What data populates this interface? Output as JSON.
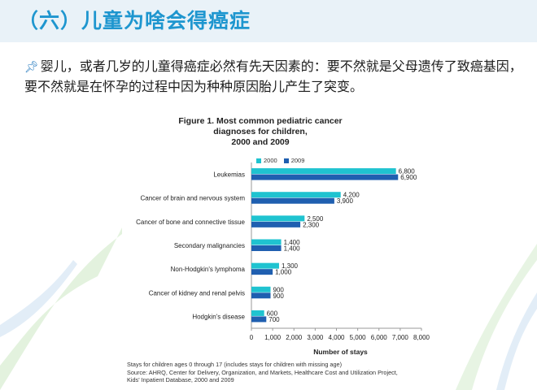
{
  "slide": {
    "title": "（六）儿童为啥会得癌症",
    "body_text": "婴儿，或者几岁的儿童得癌症必然有先天因素的：要不然就是父母遗传了致癌基因，要不然就是在怀孕的过程中因为种种原因胎儿产生了突变。",
    "bullet_icon": "pin-icon"
  },
  "colors": {
    "series_2000": "#1fc3d0",
    "series_2009": "#1f5fb0",
    "title": "#1e96cf"
  },
  "chart_data": {
    "type": "bar",
    "orientation": "horizontal",
    "title_lines": [
      "Figure 1. Most common pediatric cancer",
      "diagnoses for children,",
      "2000 and 2009"
    ],
    "categories": [
      "Leukemias",
      "Cancer of brain and nervous system",
      "Cancer of bone and connective tissue",
      "Secondary malignancies",
      "Non-Hodgkin's lymphoma",
      "Cancer of kidney and renal pelvis",
      "Hodgkin's disease"
    ],
    "series": [
      {
        "name": "2000",
        "values": [
          6800,
          4200,
          2500,
          1400,
          1300,
          900,
          600
        ]
      },
      {
        "name": "2009",
        "values": [
          6900,
          3900,
          2300,
          1400,
          1000,
          900,
          700
        ]
      }
    ],
    "data_labels": [
      [
        "6,800",
        "4,200",
        "2,500",
        "1,400",
        "1,300",
        "900",
        "600"
      ],
      [
        "6,900",
        "3,900",
        "2,300",
        "1,400",
        "1,000",
        "900",
        "700"
      ]
    ],
    "xlim": [
      0,
      8000
    ],
    "xticks": [
      "0",
      "1,000",
      "2,000",
      "3,000",
      "4,000",
      "5,000",
      "6,000",
      "7,000",
      "8,000"
    ],
    "xlabel": "Number of stays",
    "legend_position": "top"
  },
  "footnote": {
    "line1": "Stays for children ages  0 through 17 (includes stays for children with missing age)",
    "line2": "Source: AHRQ, Center for Delivery, Organization, and Markets, Healthcare Cost and Utilization Project,",
    "line3": "Kids' Inpatient Database, 2000 and 2009"
  }
}
